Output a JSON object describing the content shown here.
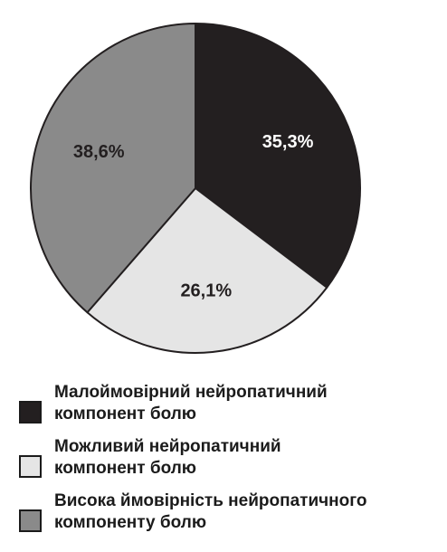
{
  "chart_data": {
    "type": "pie",
    "title": "",
    "slices": [
      {
        "label": "Малоймовірний нейропатичний компонент болю",
        "label_lines": [
          "Малоймовірний нейропатичний",
          "компонент болю"
        ],
        "value": 35.3,
        "value_label": "35,3%",
        "color": "#231f20",
        "text_color": "#ffffff"
      },
      {
        "label": "Можливий нейропатичний компонент болю",
        "label_lines": [
          "Можливий нейропатичний",
          "компонент болю"
        ],
        "value": 26.1,
        "value_label": "26,1%",
        "color": "#e5e5e5",
        "text_color": "#231f20"
      },
      {
        "label": "Висока ймовірність нейропатичного компоненту болю",
        "label_lines": [
          "Висока ймовірність нейропатичного",
          "компоненту болю"
        ],
        "value": 38.6,
        "value_label": "38,6%",
        "color": "#8a8a8a",
        "text_color": "#231f20"
      }
    ],
    "start_angle": "12 o'clock",
    "direction": "clockwise",
    "legend_position": "bottom",
    "outline_color": "#231f20"
  }
}
